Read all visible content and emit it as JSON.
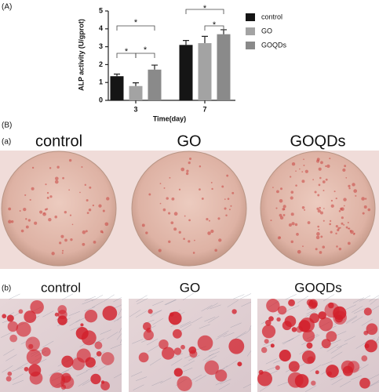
{
  "chart_data": {
    "type": "bar",
    "panel_label": "(A)",
    "y_label": "ALP activity (U/gprot)",
    "x_label": "Time(day)",
    "categories": [
      "3",
      "7"
    ],
    "series": [
      {
        "name": "control",
        "color": "#151515",
        "values": [
          1.35,
          3.1
        ],
        "errors": [
          0.12,
          0.25
        ]
      },
      {
        "name": "GO",
        "color": "#a3a3a3",
        "values": [
          0.8,
          3.2
        ],
        "errors": [
          0.18,
          0.38
        ]
      },
      {
        "name": "GOQDs",
        "color": "#8a8a8a",
        "values": [
          1.72,
          3.7
        ],
        "errors": [
          0.25,
          0.25
        ]
      }
    ],
    "ylim": [
      0,
      5
    ],
    "yticks": [
      0,
      1,
      2,
      3,
      4,
      5
    ],
    "annotations": [
      "*",
      "*",
      "*",
      "*",
      "*"
    ]
  },
  "figure": {
    "panel_b_label": "(B)",
    "row_a_label": "(a)",
    "row_b_label": "(b)",
    "row_a_titles": [
      "control",
      "GO",
      "GOQDs"
    ],
    "row_b_titles": [
      "control",
      "GO",
      "GOQDs"
    ]
  }
}
